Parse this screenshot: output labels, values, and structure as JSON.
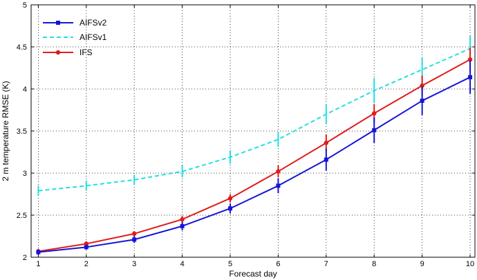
{
  "chart_data": {
    "type": "line",
    "title": "",
    "xlabel": "Forecast day",
    "ylabel": "2 m temperature RMSE (K)",
    "x": [
      1,
      2,
      3,
      4,
      5,
      6,
      7,
      8,
      9,
      10
    ],
    "xlim": [
      0.85,
      10.1
    ],
    "ylim": [
      2,
      5
    ],
    "xticks": [
      "1",
      "2",
      "3",
      "4",
      "5",
      "6",
      "7",
      "8",
      "9",
      "10"
    ],
    "yticks": [
      "2",
      "2.5",
      "3",
      "3.5",
      "4",
      "4.5",
      "5"
    ],
    "ytick_values": [
      2,
      2.5,
      3,
      3.5,
      4,
      4.5,
      5
    ],
    "grid": true,
    "legend_position": "top-left",
    "series": [
      {
        "name": "AIFSv2",
        "color": "#1515d6",
        "style": "solid",
        "marker": "square",
        "values": [
          2.06,
          2.12,
          2.21,
          2.37,
          2.58,
          2.85,
          3.16,
          3.51,
          3.86,
          4.14
        ],
        "err": [
          0.03,
          0.03,
          0.04,
          0.05,
          0.06,
          0.09,
          0.13,
          0.15,
          0.17,
          0.2
        ]
      },
      {
        "name": "AIFSv1",
        "color": "#22dede",
        "style": "dashed",
        "marker": "none",
        "values": [
          2.79,
          2.85,
          2.92,
          3.02,
          3.19,
          3.4,
          3.7,
          3.98,
          4.23,
          4.48
        ],
        "err": [
          0.06,
          0.06,
          0.06,
          0.07,
          0.08,
          0.09,
          0.12,
          0.15,
          0.15,
          0.15
        ]
      },
      {
        "name": "IFS",
        "color": "#e01b1b",
        "style": "solid",
        "marker": "circle",
        "values": [
          2.07,
          2.16,
          2.28,
          2.45,
          2.7,
          3.02,
          3.36,
          3.71,
          4.04,
          4.35
        ],
        "err": [
          0.03,
          0.03,
          0.03,
          0.04,
          0.05,
          0.07,
          0.1,
          0.11,
          0.12,
          0.14
        ]
      }
    ]
  }
}
